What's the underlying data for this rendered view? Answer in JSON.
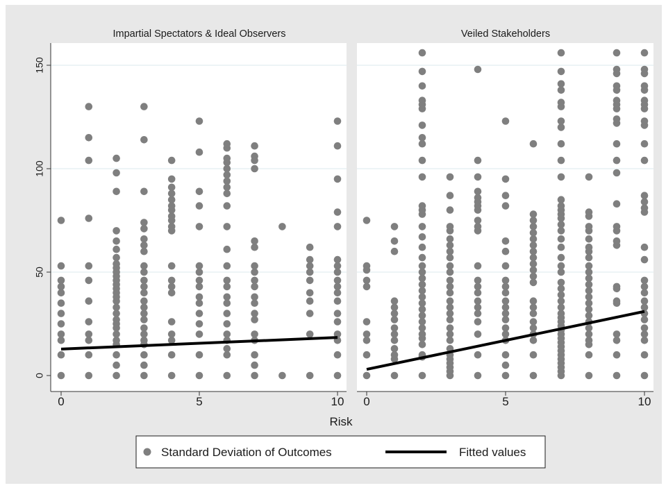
{
  "chart_data": {
    "type": "scatter",
    "xlabel": "Risk",
    "ylabel": "",
    "xlim": [
      0,
      10
    ],
    "ylim": [
      0,
      150
    ],
    "x_ticks": [
      0,
      5,
      10
    ],
    "y_ticks": [
      0,
      50,
      100,
      150
    ],
    "grid": true,
    "legend_position": "bottom",
    "legend": {
      "scatter_label": "Standard Deviation of Outcomes",
      "line_label": "Fitted values"
    },
    "colors": {
      "points": "#7f7f7f",
      "fit_line": "#000000",
      "background": "#e8e8e8",
      "panel": "#ffffff",
      "grid": "#e2eef0"
    },
    "panels": [
      {
        "title": "Impartial Spectators & Ideal Observers",
        "fitted_line": [
          [
            0,
            12.8
          ],
          [
            10,
            18.4
          ]
        ],
        "points": {
          "0": [
            0,
            10,
            17,
            20,
            25,
            30,
            35,
            40,
            43,
            46,
            53,
            75
          ],
          "1": [
            0,
            10,
            17,
            20,
            26,
            36,
            46,
            53,
            76,
            104,
            115,
            130
          ],
          "2": [
            0,
            5,
            10,
            15,
            17,
            20,
            23,
            25,
            27,
            30,
            33,
            36,
            38,
            40,
            42,
            44,
            46,
            48,
            50,
            52,
            54,
            57,
            61,
            65,
            70,
            89,
            98,
            105
          ],
          "3": [
            0,
            5,
            10,
            15,
            17,
            20,
            23,
            27,
            30,
            33,
            36,
            40,
            43,
            46,
            50,
            53,
            60,
            63,
            66,
            71,
            74,
            89,
            114,
            130
          ],
          "4": [
            0,
            10,
            17,
            20,
            26,
            40,
            43,
            46,
            53,
            70,
            72,
            75,
            77,
            80,
            82,
            85,
            88,
            91,
            95,
            104
          ],
          "5": [
            0,
            10,
            20,
            25,
            30,
            35,
            38,
            43,
            46,
            50,
            53,
            72,
            82,
            89,
            108,
            123
          ],
          "6": [
            0,
            10,
            13,
            17,
            20,
            25,
            30,
            35,
            38,
            43,
            46,
            53,
            61,
            72,
            82,
            88,
            91,
            94,
            97,
            100,
            103,
            105,
            110,
            112
          ],
          "7": [
            0,
            5,
            10,
            17,
            20,
            27,
            30,
            35,
            38,
            43,
            46,
            50,
            53,
            62,
            65,
            100,
            104,
            106,
            111
          ],
          "8": [
            0,
            72
          ],
          "9": [
            0,
            20,
            30,
            36,
            40,
            46,
            50,
            53,
            56,
            62
          ],
          "10": [
            0,
            10,
            17,
            20,
            26,
            30,
            36,
            40,
            43,
            46,
            50,
            53,
            56,
            72,
            79,
            95,
            111,
            123
          ]
        }
      },
      {
        "title": "Veiled Stakeholders",
        "fitted_line": [
          [
            0,
            3
          ],
          [
            10,
            31
          ]
        ],
        "points": {
          "0": [
            0,
            10,
            17,
            20,
            26,
            43,
            46,
            51,
            53,
            75
          ],
          "1": [
            0,
            8,
            10,
            13,
            17,
            20,
            23,
            27,
            30,
            33,
            36,
            60,
            65,
            72
          ],
          "2": [
            0,
            9,
            10,
            15,
            18,
            20,
            23,
            26,
            29,
            32,
            35,
            38,
            41,
            44,
            47,
            50,
            53,
            57,
            62,
            67,
            72,
            78,
            80,
            82,
            96,
            104,
            112,
            115,
            121,
            129,
            131,
            133,
            140,
            147,
            156
          ],
          "3": [
            0,
            2,
            4,
            6,
            8,
            10,
            13,
            17,
            20,
            23,
            27,
            30,
            33,
            36,
            40,
            43,
            46,
            50,
            53,
            57,
            60,
            63,
            66,
            70,
            72,
            80,
            87,
            96
          ],
          "4": [
            0,
            10,
            20,
            26,
            30,
            33,
            36,
            40,
            43,
            46,
            53,
            70,
            72,
            75,
            80,
            82,
            84,
            86,
            89,
            96,
            104,
            148
          ],
          "5": [
            0,
            5,
            10,
            17,
            20,
            23,
            27,
            30,
            33,
            36,
            40,
            43,
            46,
            53,
            60,
            65,
            82,
            87,
            95,
            123
          ],
          "6": [
            0,
            10,
            17,
            20,
            23,
            26,
            30,
            33,
            36,
            45,
            48,
            51,
            54,
            57,
            60,
            63,
            66,
            69,
            72,
            75,
            78,
            112
          ],
          "7": [
            0,
            2,
            4,
            6,
            8,
            10,
            12,
            14,
            16,
            18,
            20,
            22,
            24,
            26,
            28,
            30,
            33,
            36,
            39,
            42,
            45,
            50,
            53,
            57,
            62,
            66,
            70,
            73,
            76,
            78,
            80,
            82,
            85,
            96,
            104,
            112,
            120,
            123,
            130,
            132,
            138,
            141,
            147,
            156
          ],
          "8": [
            0,
            10,
            15,
            17,
            20,
            23,
            26,
            29,
            32,
            35,
            38,
            41,
            44,
            47,
            50,
            53,
            57,
            60,
            62,
            66,
            70,
            72,
            77,
            79,
            96
          ],
          "9": [
            0,
            10,
            17,
            20,
            35,
            36,
            42,
            43,
            63,
            65,
            70,
            72,
            83,
            98,
            104,
            112,
            122,
            124,
            129,
            131,
            133,
            138,
            140,
            146,
            148,
            156
          ],
          "10": [
            0,
            10,
            17,
            20,
            23,
            27,
            30,
            33,
            36,
            40,
            43,
            46,
            56,
            62,
            79,
            81,
            84,
            87,
            104,
            112,
            121,
            123,
            129,
            131,
            133,
            138,
            140,
            146,
            148,
            156
          ]
        }
      }
    ]
  }
}
